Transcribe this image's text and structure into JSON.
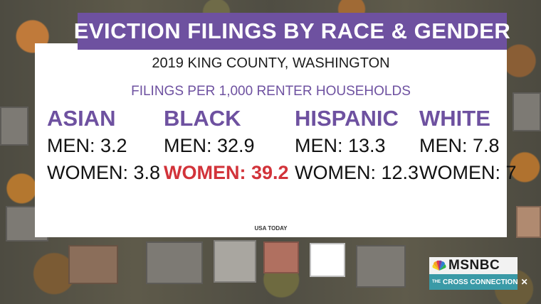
{
  "title": "EVICTION FILINGS BY RACE & GENDER",
  "subtitle": "2019 KING COUNTY, WASHINGTON",
  "metric": "FILINGS PER 1,000 RENTER HOUSEHOLDS",
  "groups": [
    {
      "race": "ASIAN",
      "men": "MEN: 3.2",
      "women": "WOMEN: 3.8"
    },
    {
      "race": "BLACK",
      "men": "MEN: 32.9",
      "women": "WOMEN: 39.2"
    },
    {
      "race": "HISPANIC",
      "men": "MEN: 13.3",
      "women": "WOMEN: 12.3"
    },
    {
      "race": "WHITE",
      "men": "MEN: 7.8",
      "women": "WOMEN: 7"
    }
  ],
  "source": "USA TODAY",
  "logo": {
    "network": "MSNBC",
    "show_prefix": "THE",
    "show": "CROSS CONNECTION"
  },
  "colors": {
    "accent": "#6e51a0",
    "highlight": "#d2333a",
    "logo_teal": "#3a9aa7"
  }
}
